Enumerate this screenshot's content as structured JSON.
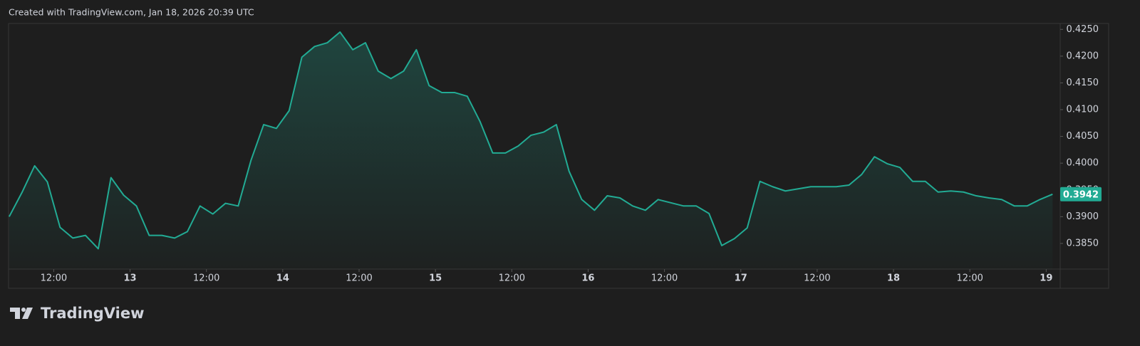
{
  "header": {
    "text": "Created with TradingView.com, Jan 18, 2026 20:39 UTC"
  },
  "footer": {
    "brand": "TradingView"
  },
  "chart_data": {
    "type": "area",
    "color": "#22ab94",
    "grid": false,
    "x": [
      5,
      7,
      9,
      11,
      13,
      15,
      17,
      19,
      21,
      23,
      25,
      27,
      29,
      31,
      33,
      35,
      37,
      39,
      41,
      43,
      45,
      47,
      49,
      51,
      53,
      55,
      57,
      59,
      61,
      63,
      65,
      67,
      69,
      71,
      73,
      75,
      77,
      79,
      81,
      83,
      85,
      87,
      89,
      91,
      93,
      95,
      97,
      99,
      101,
      103,
      105,
      107,
      109,
      111,
      113,
      115,
      117,
      119,
      121,
      123,
      125,
      127,
      129,
      131,
      133,
      135,
      137,
      139,
      141,
      143,
      145,
      147,
      149,
      151,
      153,
      155,
      157,
      159,
      161,
      163,
      165,
      167,
      169
    ],
    "values": [
      0.39,
      0.3945,
      0.3995,
      0.3965,
      0.388,
      0.386,
      0.3865,
      0.384,
      0.3973,
      0.394,
      0.392,
      0.3865,
      0.3865,
      0.386,
      0.3872,
      0.392,
      0.3905,
      0.3925,
      0.392,
      0.4005,
      0.4072,
      0.4065,
      0.4098,
      0.4198,
      0.4218,
      0.4225,
      0.4245,
      0.4212,
      0.4225,
      0.4172,
      0.4158,
      0.4172,
      0.4212,
      0.4145,
      0.4132,
      0.4132,
      0.4125,
      0.4078,
      0.4019,
      0.4019,
      0.4032,
      0.4052,
      0.4058,
      0.4072,
      0.3985,
      0.3932,
      0.3912,
      0.3939,
      0.3935,
      0.392,
      0.3912,
      0.3932,
      0.3926,
      0.392,
      0.392,
      0.3906,
      0.3846,
      0.3859,
      0.3879,
      0.3966,
      0.3956,
      0.3948,
      0.3952,
      0.3956,
      0.3956,
      0.3956,
      0.3959,
      0.3979,
      0.4012,
      0.3999,
      0.3992,
      0.3966,
      0.3966,
      0.3946,
      0.3948,
      0.3946,
      0.3939,
      0.3935,
      0.3932,
      0.392,
      0.392,
      0.3932,
      0.3942
    ],
    "xlim": [
      4.9,
      170.2
    ],
    "ylim": [
      0.3802,
      0.4261
    ],
    "xticks": [
      {
        "value": 12,
        "label": "12:00"
      },
      {
        "value": 24,
        "label": "13"
      },
      {
        "value": 36,
        "label": "12:00"
      },
      {
        "value": 48,
        "label": "14"
      },
      {
        "value": 60,
        "label": "12:00"
      },
      {
        "value": 72,
        "label": "15"
      },
      {
        "value": 84,
        "label": "12:00"
      },
      {
        "value": 96,
        "label": "16"
      },
      {
        "value": 108,
        "label": "12:00"
      },
      {
        "value": 120,
        "label": "17"
      },
      {
        "value": 132,
        "label": "12:00"
      },
      {
        "value": 144,
        "label": "18"
      },
      {
        "value": 156,
        "label": "12:00"
      },
      {
        "value": 168,
        "label": "19"
      }
    ],
    "yticks": [
      {
        "value": 0.385,
        "label": "0.3850"
      },
      {
        "value": 0.39,
        "label": "0.3900"
      },
      {
        "value": 0.395,
        "label": "0.3950"
      },
      {
        "value": 0.4,
        "label": "0.4000"
      },
      {
        "value": 0.405,
        "label": "0.4050"
      },
      {
        "value": 0.41,
        "label": "0.4100"
      },
      {
        "value": 0.415,
        "label": "0.4150"
      },
      {
        "value": 0.42,
        "label": "0.4200"
      },
      {
        "value": 0.425,
        "label": "0.4250"
      }
    ]
  }
}
